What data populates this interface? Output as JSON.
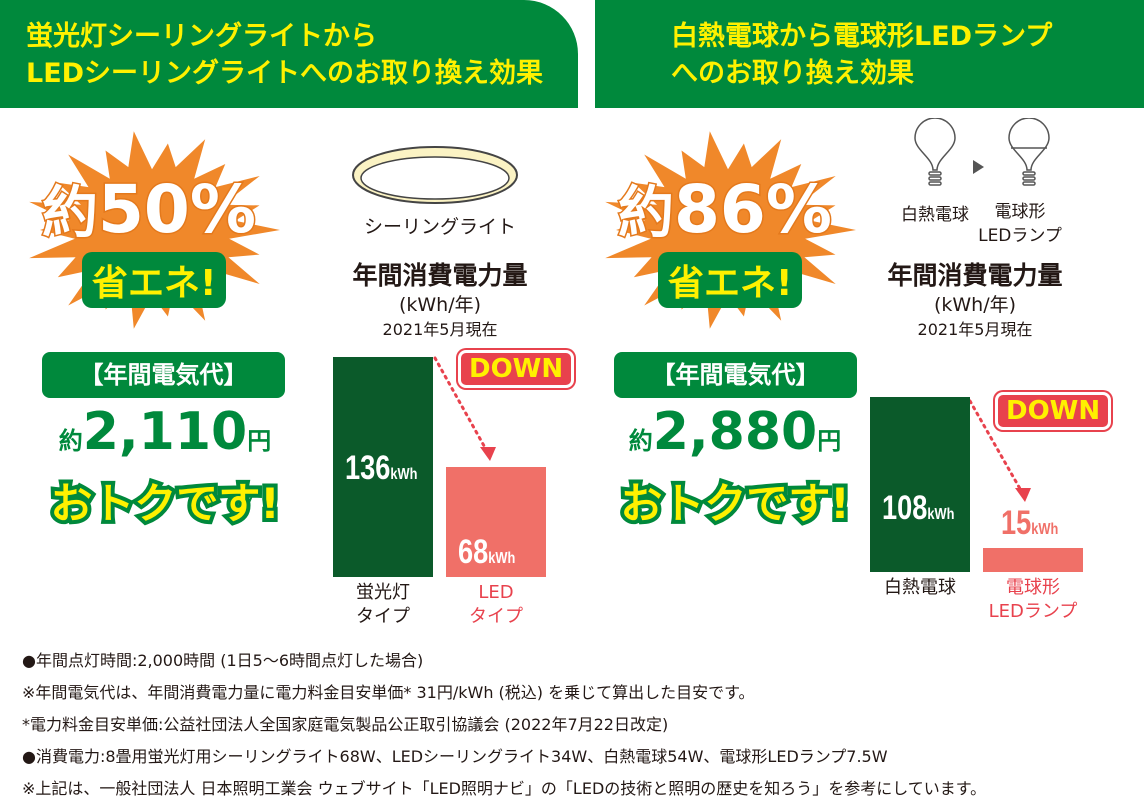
{
  "left": {
    "header": [
      "蛍光灯シーリングライトから",
      "LEDシーリングライトへのお取り換え効果"
    ],
    "badge_prefix": "約",
    "badge_value": "50%",
    "badge_sub": "省エネ!",
    "bill_label": "【年間電気代】",
    "saving_prefix": "約",
    "saving_value": "2,110",
    "saving_unit": "円",
    "saving_sub": "おトクです!",
    "product_label": "シーリングライト",
    "chart_title": "年間消費電力量",
    "chart_unit": "(kWh/年)",
    "chart_date": "2021年5月現在",
    "down_label": "DOWN",
    "bars": [
      {
        "value_text": "136",
        "unit": "kWh",
        "label": [
          "蛍光灯",
          "タイプ"
        ]
      },
      {
        "value_text": "68",
        "unit": "kWh",
        "label": [
          "LED",
          "タイプ"
        ]
      }
    ]
  },
  "right": {
    "header": [
      "白熱電球から電球形LEDランプ",
      "へのお取り換え効果"
    ],
    "badge_prefix": "約",
    "badge_value": "86%",
    "badge_sub": "省エネ!",
    "bill_label": "【年間電気代】",
    "saving_prefix": "約",
    "saving_value": "2,880",
    "saving_unit": "円",
    "saving_sub": "おトクです!",
    "bulb_from": "白熱電球",
    "bulb_to": [
      "電球形",
      "LEDランプ"
    ],
    "chart_title": "年間消費電力量",
    "chart_unit": "(kWh/年)",
    "chart_date": "2021年5月現在",
    "down_label": "DOWN",
    "bars": [
      {
        "value_text": "108",
        "unit": "kWh",
        "label": [
          "白熱電球"
        ]
      },
      {
        "value_text": "15",
        "unit": "kWh",
        "label": [
          "電球形",
          "LEDランプ"
        ]
      }
    ]
  },
  "notes": [
    "●年間点灯時間:2,000時間 (1日5〜6時間点灯した場合)",
    "※年間電気代は、年間消費電力量に電力料金目安単価* 31円/kWh (税込) を乗じて算出した目安です。",
    "*電力料金目安単価:公益社団法人全国家庭電気製品公正取引協議会 (2022年7月22日改定)",
    "●消費電力:8畳用蛍光灯用シーリングライト68W、LEDシーリングライト34W、白熱電球54W、電球形LEDランプ7.5W",
    "※上記は、一般社団法人 日本照明工業会 ウェブサイト「LED照明ナビ」の「LEDの技術と照明の歴史を知ろう」を参考にしています。"
  ],
  "colors": {
    "green": "#00893c",
    "dark_green": "#0b5a2a",
    "salmon": "#f07068",
    "orange": "#f0882a",
    "yellow": "#fff100",
    "red": "#e8424d"
  },
  "chart_data": [
    {
      "type": "bar",
      "title": "年間消費電力量",
      "ylabel": "(kWh/年)",
      "categories": [
        "蛍光灯タイプ",
        "LEDタイプ"
      ],
      "values": [
        136,
        68
      ],
      "unit": "kWh",
      "colors": [
        "#0b5a2a",
        "#f07068"
      ]
    },
    {
      "type": "bar",
      "title": "年間消費電力量",
      "ylabel": "(kWh/年)",
      "categories": [
        "白熱電球",
        "電球形LEDランプ"
      ],
      "values": [
        108,
        15
      ],
      "unit": "kWh",
      "colors": [
        "#0b5a2a",
        "#f07068"
      ]
    }
  ]
}
